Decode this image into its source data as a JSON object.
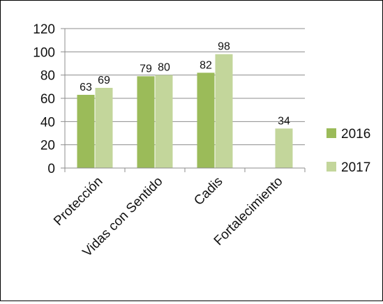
{
  "chart_data": {
    "type": "bar",
    "categories": [
      "Protección",
      "Vidas con Sentido",
      "Cadis",
      "Fortalecimiento"
    ],
    "series": [
      {
        "name": "2016",
        "values": [
          63,
          79,
          82,
          null
        ],
        "color": "#9BBB59"
      },
      {
        "name": "2017",
        "values": [
          69,
          80,
          98,
          34
        ],
        "color": "#C3D69B"
      }
    ],
    "data_labels": [
      [
        "63",
        "79",
        "82",
        ""
      ],
      [
        "69",
        "80",
        "98",
        "34"
      ]
    ],
    "y_ticks": [
      "0",
      "20",
      "40",
      "60",
      "80",
      "100",
      "120"
    ],
    "ylim": [
      0,
      120
    ],
    "grid": true,
    "legend_position": "right",
    "title": "",
    "xlabel": "",
    "ylabel": ""
  }
}
